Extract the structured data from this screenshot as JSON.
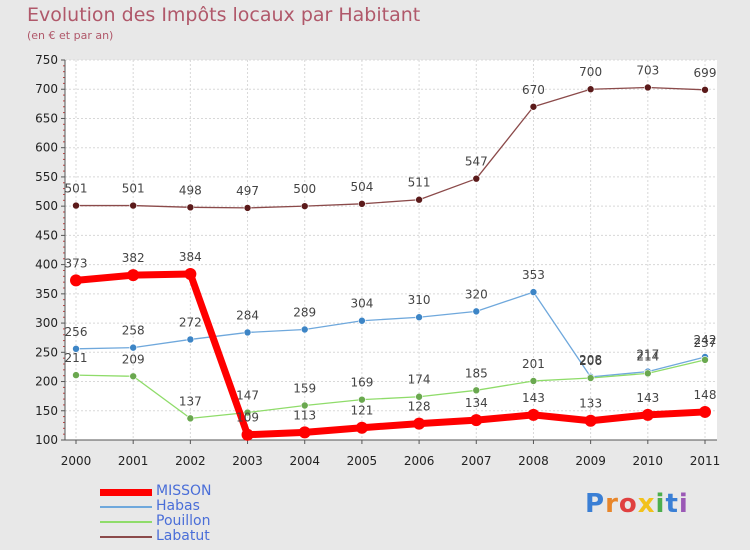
{
  "title": "Evolution des Impôts locaux par Habitant",
  "subtitle": "(en € et par an)",
  "logo": {
    "text": "Proxiti",
    "colors": [
      "#3a7fd5",
      "#e8862a",
      "#e04040",
      "#f2c21b",
      "#4cae4c",
      "#3a7fd5",
      "#9b59b6"
    ]
  },
  "chart_data": {
    "type": "line",
    "x": [
      2000,
      2001,
      2002,
      2003,
      2004,
      2005,
      2006,
      2007,
      2008,
      2009,
      2010,
      2011
    ],
    "ylim": [
      100,
      750
    ],
    "yticks": [
      100,
      150,
      200,
      250,
      300,
      350,
      400,
      450,
      500,
      550,
      600,
      650,
      700,
      750
    ],
    "grid": true,
    "legend_position": "bottom-left",
    "series": [
      {
        "name": "MISSON",
        "color": "#ff0000",
        "marker": "#ff0000",
        "bold": true,
        "values": [
          373,
          382,
          384,
          109,
          113,
          121,
          128,
          134,
          143,
          133,
          143,
          148
        ]
      },
      {
        "name": "Habas",
        "color": "#6fa8dc",
        "marker": "#3d85c6",
        "bold": false,
        "values": [
          256,
          258,
          272,
          284,
          289,
          304,
          310,
          320,
          353,
          208,
          217,
          242
        ]
      },
      {
        "name": "Pouillon",
        "color": "#8fdc6a",
        "marker": "#6aa84f",
        "bold": false,
        "values": [
          211,
          209,
          137,
          147,
          159,
          169,
          174,
          185,
          201,
          206,
          214,
          237
        ]
      },
      {
        "name": "Labatut",
        "color": "#8b4a4a",
        "marker": "#5b1a1a",
        "bold": false,
        "values": [
          501,
          501,
          498,
          497,
          500,
          504,
          511,
          547,
          670,
          700,
          703,
          699
        ]
      }
    ]
  }
}
